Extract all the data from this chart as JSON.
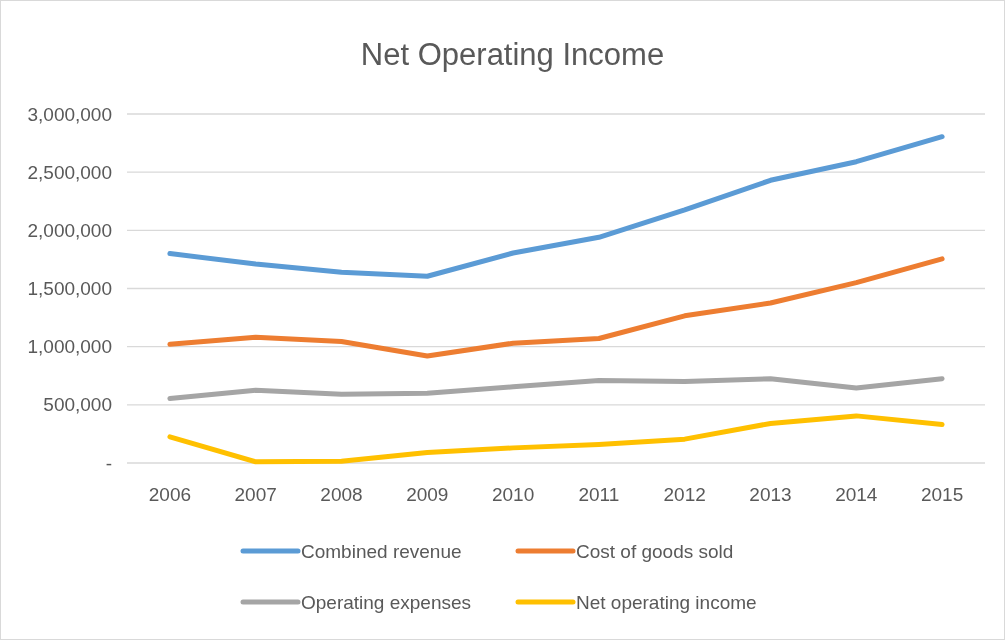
{
  "chart_data": {
    "type": "line",
    "title": "Net Operating Income",
    "categories": [
      "2006",
      "2007",
      "2008",
      "2009",
      "2010",
      "2011",
      "2012",
      "2013",
      "2014",
      "2015"
    ],
    "series": [
      {
        "name": "Combined revenue",
        "color": "#5b9bd5",
        "values": [
          1800000,
          1710000,
          1640000,
          1605000,
          1805000,
          1940000,
          2175000,
          2430000,
          2590000,
          2805000
        ]
      },
      {
        "name": "Cost of goods sold",
        "color": "#ed7d31",
        "values": [
          1020000,
          1080000,
          1045000,
          920000,
          1030000,
          1070000,
          1265000,
          1375000,
          1550000,
          1755000
        ]
      },
      {
        "name": "Operating expenses",
        "color": "#a5a5a5",
        "values": [
          555000,
          625000,
          590000,
          600000,
          655000,
          710000,
          700000,
          725000,
          645000,
          725000
        ]
      },
      {
        "name": "Net operating income",
        "color": "#ffc000",
        "values": [
          225000,
          10000,
          15000,
          90000,
          130000,
          160000,
          205000,
          340000,
          405000,
          330000
        ]
      }
    ],
    "ylim": [
      0,
      3000000
    ],
    "yticks": [
      {
        "value": 0,
        "label": "-"
      },
      {
        "value": 500000,
        "label": "500,000"
      },
      {
        "value": 1000000,
        "label": "1,000,000"
      },
      {
        "value": 1500000,
        "label": "1,500,000"
      },
      {
        "value": 2000000,
        "label": "2,000,000"
      },
      {
        "value": 2500000,
        "label": "2,500,000"
      },
      {
        "value": 3000000,
        "label": "3,000,000"
      }
    ],
    "grid": "y",
    "legend": "bottom",
    "marker": "none",
    "line_style": "solid"
  }
}
